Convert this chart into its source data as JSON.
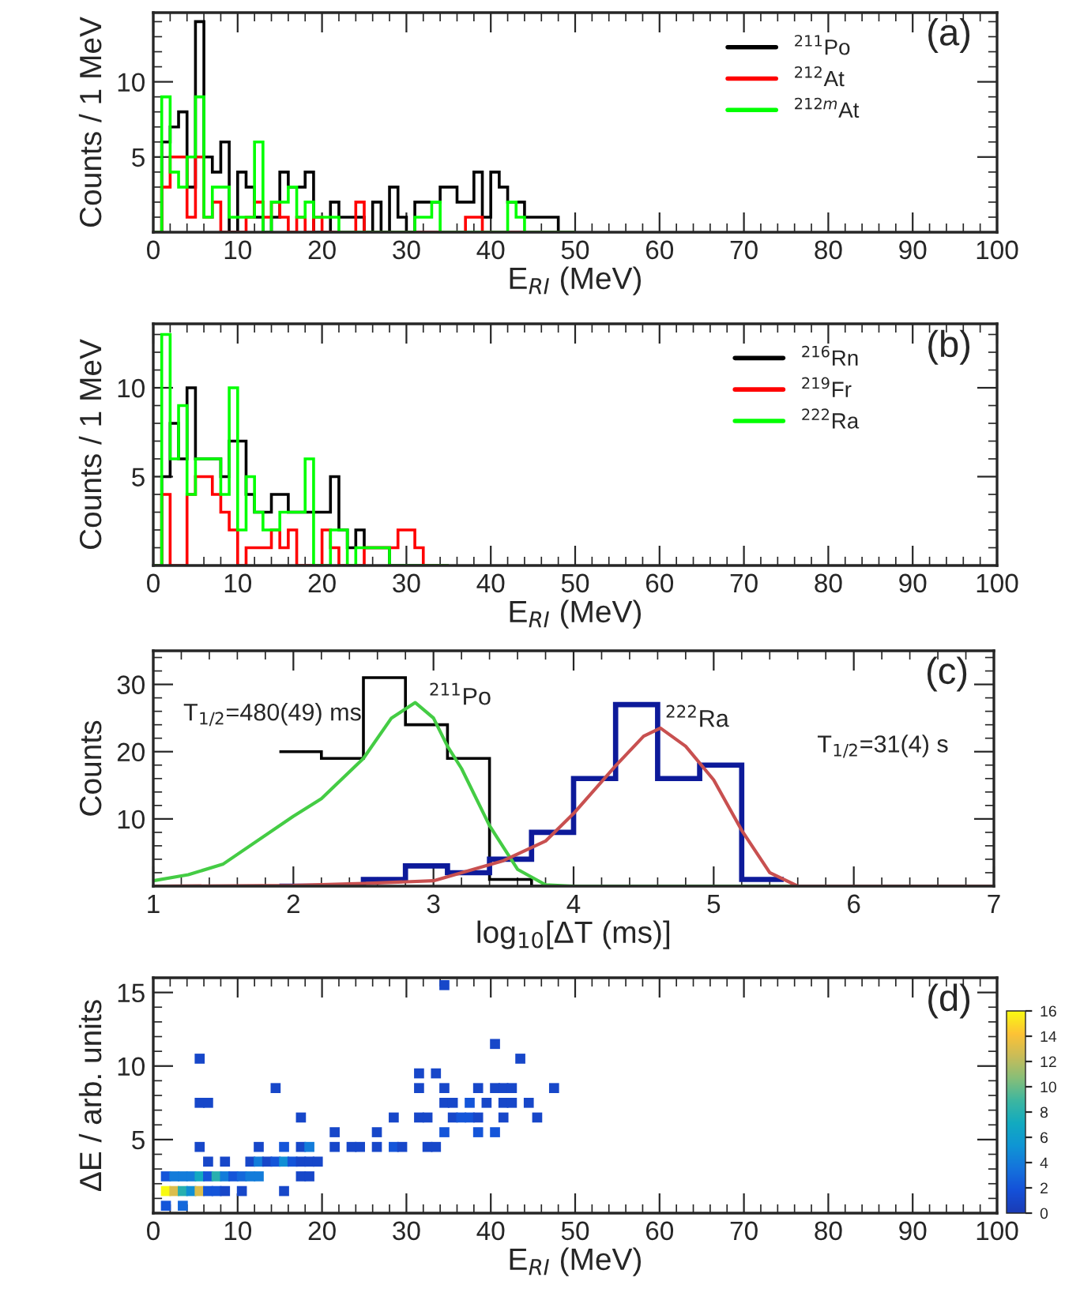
{
  "chart_data": [
    {
      "type": "histogram",
      "xlabel": "E$_{RI}$ (MeV)",
      "ylabel": "Counts / 1 MeV",
      "xlim": [
        0,
        100
      ],
      "ylim": [
        0,
        14.6
      ],
      "xticks": [
        0,
        10,
        20,
        30,
        40,
        50,
        60,
        70,
        80,
        90,
        100
      ],
      "yticks": [
        5,
        10
      ],
      "legend": "top right",
      "annotations": [
        "(a)"
      ],
      "bins": [
        0,
        1,
        2,
        3,
        4,
        5,
        6,
        7,
        8,
        9,
        10,
        11,
        12,
        13,
        14,
        15,
        16,
        17,
        18,
        19,
        20,
        21,
        22,
        23,
        24,
        25,
        26,
        27,
        28,
        29,
        30,
        31,
        32,
        33,
        34,
        35,
        36,
        37,
        38,
        39,
        40,
        41,
        42,
        43,
        44,
        45,
        46,
        47,
        48,
        49,
        50
      ],
      "series": [
        {
          "name": "$^{211}$Po",
          "color": "#000000",
          "values": [
            0,
            6,
            7,
            8,
            3,
            14,
            5,
            4,
            6,
            0,
            4,
            3,
            1,
            0,
            1,
            4,
            3,
            3,
            4,
            0,
            0,
            2,
            1,
            1,
            1,
            0,
            2,
            0,
            3,
            1,
            0,
            2,
            2,
            2,
            3,
            3,
            2,
            2,
            4,
            1,
            4,
            3,
            2,
            2,
            1,
            1,
            1,
            1,
            0,
            0
          ]
        },
        {
          "name": "$^{212}$At",
          "color": "#ff0000",
          "values": [
            0,
            3,
            5,
            5,
            1,
            5,
            1,
            2,
            0,
            0,
            0,
            1,
            2,
            1,
            2,
            1,
            0,
            1,
            0,
            1,
            0,
            0,
            0,
            0,
            2,
            0,
            0,
            0,
            0,
            0,
            0,
            0,
            0,
            0,
            0,
            0,
            0,
            1,
            1,
            0,
            0,
            0,
            0,
            0,
            0,
            0,
            0,
            0,
            0,
            0
          ]
        },
        {
          "name": "$^{212m}$At",
          "color": "#00ff00",
          "values": [
            0,
            9,
            4,
            3,
            5,
            9,
            1,
            3,
            3,
            1,
            1,
            1,
            6,
            0,
            2,
            2,
            3,
            1,
            2,
            1,
            1,
            1,
            0,
            0,
            0,
            0,
            0,
            0,
            0,
            0,
            0,
            1,
            1,
            2,
            0,
            0,
            0,
            0,
            0,
            0,
            0,
            0,
            2,
            1,
            0,
            0,
            0,
            0,
            0,
            0
          ]
        }
      ]
    },
    {
      "type": "histogram",
      "xlabel": "E$_{RI}$ (MeV)",
      "ylabel": "Counts / 1 MeV",
      "xlim": [
        0,
        100
      ],
      "ylim": [
        0,
        13.6
      ],
      "xticks": [
        0,
        10,
        20,
        30,
        40,
        50,
        60,
        70,
        80,
        90,
        100
      ],
      "yticks": [
        5,
        10
      ],
      "legend": "right",
      "annotations": [
        "(b)"
      ],
      "bins": [
        0,
        1,
        2,
        3,
        4,
        5,
        6,
        7,
        8,
        9,
        10,
        11,
        12,
        13,
        14,
        15,
        16,
        17,
        18,
        19,
        20,
        21,
        22,
        23,
        24,
        25,
        26,
        27,
        28,
        29,
        30,
        31,
        32,
        33,
        34,
        35
      ],
      "series": [
        {
          "name": "$^{216}$Rn",
          "color": "#000000",
          "values": [
            0,
            5,
            8,
            6,
            10,
            6,
            6,
            6,
            5,
            7,
            7,
            4,
            3,
            3,
            4,
            4,
            3,
            3,
            3,
            3,
            3,
            5,
            2,
            1,
            2,
            1,
            1,
            1,
            0,
            0,
            0,
            0,
            0,
            0,
            0
          ]
        },
        {
          "name": "$^{219}$Fr",
          "color": "#ff0000",
          "values": [
            0,
            4,
            0,
            0,
            4,
            5,
            5,
            4,
            3,
            2,
            0,
            1,
            1,
            1,
            2,
            1,
            2,
            0,
            0,
            0,
            2,
            1,
            0,
            0,
            0,
            1,
            1,
            1,
            1,
            2,
            2,
            1,
            0,
            0,
            0
          ]
        },
        {
          "name": "$^{222}$Ra",
          "color": "#00ff00",
          "values": [
            0,
            13,
            6,
            9,
            4,
            6,
            6,
            6,
            4,
            10,
            2,
            5,
            3,
            2,
            2,
            3,
            3,
            3,
            6,
            0,
            0,
            2,
            2,
            0,
            1,
            1,
            1,
            1,
            0,
            0,
            0,
            0,
            0,
            0,
            0
          ]
        }
      ]
    },
    {
      "type": "histogram",
      "xlabel": "log$_{10}$[ΔT (ms)]",
      "ylabel": "Counts",
      "xlim": [
        1,
        7
      ],
      "ylim": [
        0,
        35
      ],
      "xticks": [
        1,
        2,
        3,
        4,
        5,
        6,
        7
      ],
      "yticks": [
        10,
        20,
        30
      ],
      "annotations": [
        "(c)",
        "T$_{1/2}$=480(49) ms",
        "$^{211}$Po",
        "$^{222}$Ra",
        "T$_{1/2}$=31(4) s"
      ],
      "bins": [
        1.9,
        2.2,
        2.5,
        2.8,
        3.1,
        3.4,
        3.7,
        4.0,
        4.3,
        4.6,
        4.9,
        5.2,
        5.5
      ],
      "series": [
        {
          "color": "#000000",
          "values": [
            20,
            19,
            31,
            24,
            19,
            1,
            0,
            0,
            0,
            0,
            0,
            0
          ]
        },
        {
          "color": "#0d1a9a",
          "values": [
            0,
            0,
            1,
            3,
            2,
            4,
            8,
            16,
            27,
            16,
            18,
            1
          ]
        },
        {
          "type": "line",
          "color": "#44cc44",
          "x": [
            1.0,
            1.25,
            1.5,
            2.0,
            2.2,
            2.5,
            2.7,
            2.87,
            3.0,
            3.1,
            3.2,
            3.4,
            3.6,
            3.8,
            4.0,
            7.0
          ],
          "values": [
            0.8,
            1.7,
            3.3,
            10.4,
            13,
            19,
            25,
            27.3,
            25,
            20.8,
            17.5,
            9,
            2.5,
            0.2,
            0,
            0
          ]
        },
        {
          "type": "line",
          "color": "#c85050",
          "x": [
            1.0,
            2.0,
            2.5,
            3.0,
            3.5,
            3.8,
            4.0,
            4.3,
            4.5,
            4.62,
            4.8,
            5.0,
            5.2,
            5.4,
            5.6,
            7.0
          ],
          "values": [
            0,
            0.1,
            0.4,
            0.8,
            3.8,
            6.7,
            10.8,
            17.9,
            22.3,
            23.5,
            20.8,
            15.8,
            8.3,
            2,
            0,
            0
          ]
        }
      ]
    },
    {
      "type": "scatter",
      "marker": "square",
      "xlabel": "E$_{RI}$ (MeV)",
      "ylabel": "ΔE / arb. units",
      "xlim": [
        0,
        100
      ],
      "ylim": [
        0,
        16
      ],
      "xticks": [
        0,
        10,
        20,
        30,
        40,
        50,
        60,
        70,
        80,
        90,
        100
      ],
      "yticks": [
        5,
        10,
        15
      ],
      "clim": [
        0,
        16
      ],
      "cticks": [
        0,
        2,
        4,
        6,
        8,
        10,
        12,
        14,
        16
      ],
      "annotations": [
        "(d)"
      ],
      "x": [
        34.5,
        40.5,
        5.5,
        43.5,
        31.5,
        33.5,
        31.5,
        34.5,
        14.5,
        38.5,
        40.5,
        41.5,
        42.5,
        47.5,
        5.5,
        6.5,
        34.5,
        35.5,
        37.5,
        39.5,
        41.5,
        42.5,
        44.5,
        17.5,
        28.5,
        31.5,
        32.5,
        35.5,
        36.5,
        37.5,
        38.5,
        41.5,
        45.5,
        21.5,
        26.5,
        34.5,
        38.5,
        40.5,
        5.5,
        12.5,
        15.5,
        17.5,
        18.5,
        21.5,
        23.5,
        24.5,
        26.5,
        28.5,
        29.5,
        32.5,
        33.5,
        6.5,
        8.5,
        11.5,
        12.5,
        13.5,
        14.5,
        15.5,
        16.5,
        17.5,
        18.5,
        19.5,
        1.5,
        2.5,
        3.5,
        4.5,
        5.5,
        6.5,
        7.5,
        8.5,
        9.5,
        10.5,
        11.5,
        12.5,
        17.5,
        18.5,
        1.5,
        2.5,
        3.5,
        4.5,
        5.5,
        6.5,
        7.5,
        8.5,
        10.5,
        15.5,
        1.5,
        3.5
      ],
      "values": [
        15.5,
        11.5,
        10.5,
        10.5,
        9.5,
        9.5,
        8.5,
        8.5,
        8.5,
        8.5,
        8.5,
        8.5,
        8.5,
        8.5,
        7.5,
        7.5,
        7.5,
        7.5,
        7.5,
        7.5,
        7.5,
        7.5,
        7.5,
        6.5,
        6.5,
        6.5,
        6.5,
        6.5,
        6.5,
        6.5,
        6.5,
        6.5,
        6.5,
        5.5,
        5.5,
        5.5,
        5.5,
        5.5,
        4.5,
        4.5,
        4.5,
        4.5,
        4.5,
        4.5,
        4.5,
        4.5,
        4.5,
        4.5,
        4.5,
        4.5,
        4.5,
        3.5,
        3.5,
        3.5,
        3.5,
        3.5,
        3.5,
        3.5,
        3.5,
        3.5,
        3.5,
        3.5,
        2.5,
        2.5,
        2.5,
        2.5,
        2.5,
        2.5,
        2.5,
        2.5,
        2.5,
        2.5,
        2.5,
        2.5,
        2.5,
        2.5,
        1.5,
        1.5,
        1.5,
        1.5,
        1.5,
        1.5,
        1.5,
        1.5,
        1.5,
        1.5,
        0.5,
        0.5
      ],
      "cvalues": [
        1,
        1,
        1,
        1,
        1,
        1,
        1,
        1,
        1,
        1,
        1,
        1,
        1,
        1,
        1,
        1,
        1,
        1,
        2,
        1,
        1,
        1,
        1,
        1,
        1,
        1,
        1,
        1,
        2,
        2,
        1,
        1,
        1,
        1,
        1,
        2,
        2,
        2,
        1,
        1,
        2,
        1,
        4,
        1,
        1,
        1,
        1,
        2,
        1,
        1,
        1,
        1,
        1,
        1,
        4,
        1,
        2,
        5,
        2,
        1,
        1,
        1,
        2,
        4,
        4,
        4,
        7,
        2,
        8,
        4,
        2,
        3,
        4,
        4,
        1,
        1,
        16,
        13,
        8,
        5,
        13,
        2,
        2,
        1,
        1,
        1,
        2,
        3
      ]
    }
  ]
}
